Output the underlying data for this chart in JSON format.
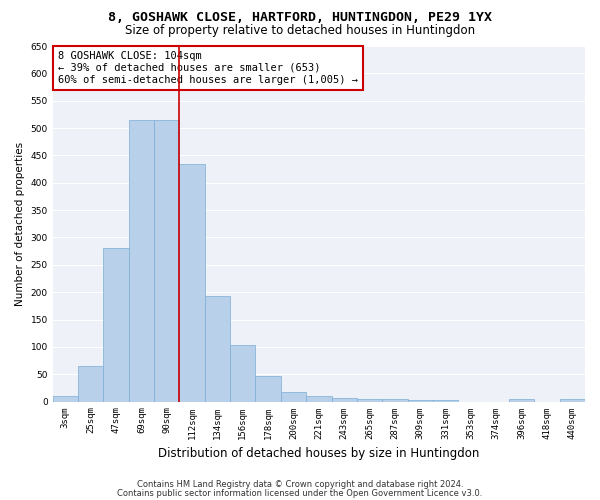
{
  "title": "8, GOSHAWK CLOSE, HARTFORD, HUNTINGDON, PE29 1YX",
  "subtitle": "Size of property relative to detached houses in Huntingdon",
  "xlabel": "Distribution of detached houses by size in Huntingdon",
  "ylabel": "Number of detached properties",
  "categories": [
    "3sqm",
    "25sqm",
    "47sqm",
    "69sqm",
    "90sqm",
    "112sqm",
    "134sqm",
    "156sqm",
    "178sqm",
    "200sqm",
    "221sqm",
    "243sqm",
    "265sqm",
    "287sqm",
    "309sqm",
    "331sqm",
    "353sqm",
    "374sqm",
    "396sqm",
    "418sqm",
    "440sqm"
  ],
  "values": [
    10,
    65,
    280,
    515,
    515,
    435,
    193,
    103,
    46,
    17,
    10,
    7,
    4,
    5,
    2,
    2,
    0,
    0,
    5,
    0,
    5
  ],
  "bar_color": "#b8d0ea",
  "bar_edge_color": "#7aadd4",
  "vline_x_index": 4,
  "vline_color": "#cc0000",
  "annotation_text": "8 GOSHAWK CLOSE: 104sqm\n← 39% of detached houses are smaller (653)\n60% of semi-detached houses are larger (1,005) →",
  "annotation_box_color": "#ffffff",
  "annotation_box_edge": "#cc0000",
  "ylim": [
    0,
    650
  ],
  "yticks": [
    0,
    50,
    100,
    150,
    200,
    250,
    300,
    350,
    400,
    450,
    500,
    550,
    600,
    650
  ],
  "background_color": "#eef2f8",
  "grid_color": "#ffffff",
  "footer1": "Contains HM Land Registry data © Crown copyright and database right 2024.",
  "footer2": "Contains public sector information licensed under the Open Government Licence v3.0.",
  "title_fontsize": 9.5,
  "subtitle_fontsize": 8.5,
  "xlabel_fontsize": 8.5,
  "ylabel_fontsize": 7.5,
  "tick_fontsize": 6.5,
  "annotation_fontsize": 7.5,
  "footer_fontsize": 6.0
}
